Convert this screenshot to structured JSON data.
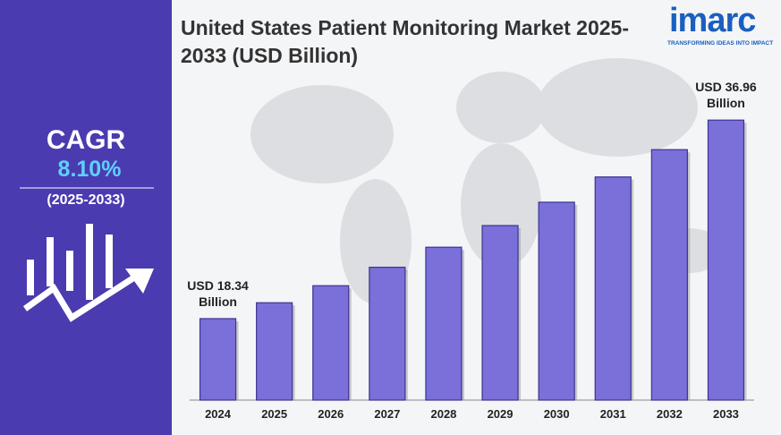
{
  "logo": {
    "name": "imarc",
    "tagline": "TRANSFORMING IDEAS INTO IMPACT"
  },
  "cagr_panel": {
    "label": "CAGR",
    "value": "8.10%",
    "period": "(2025-2033)"
  },
  "chart_data": {
    "type": "bar",
    "title": "United States Patient Monitoring Market 2025-2033 (USD Billion)",
    "categories": [
      "2024",
      "2025",
      "2026",
      "2027",
      "2028",
      "2029",
      "2030",
      "2031",
      "2032",
      "2033"
    ],
    "values": [
      18.34,
      19.83,
      21.43,
      23.16,
      25.04,
      27.07,
      29.26,
      31.63,
      34.19,
      36.96
    ],
    "value_labels": [
      "USD 18.34 Billion",
      null,
      null,
      null,
      null,
      null,
      null,
      null,
      null,
      "USD 36.96 Billion"
    ],
    "color": "#7b6fd9",
    "ylim": [
      10.7,
      40
    ]
  }
}
